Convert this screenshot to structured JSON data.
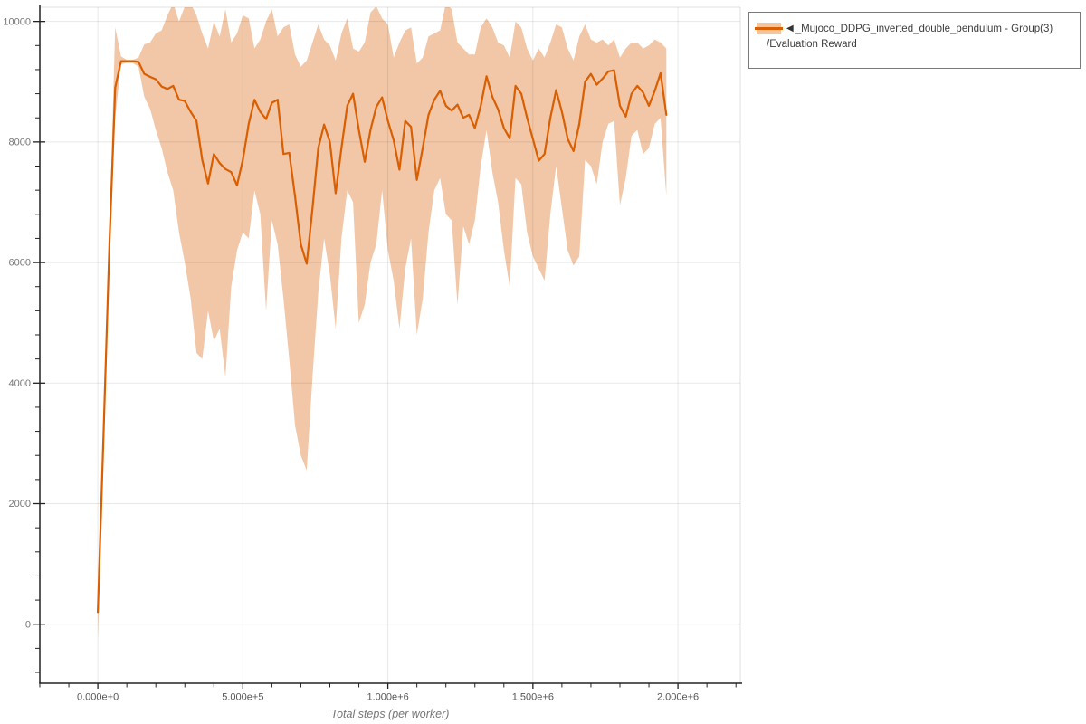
{
  "page": {
    "background_color": "#ffffff"
  },
  "legend": {
    "collapse_icon": "◀",
    "series_name": "_Mujoco_DDPG_inverted_double_pendulum - Group(3)",
    "metric_name": "/Evaluation Reward",
    "line_color": "#d95f02",
    "band_color": "#f2c59e",
    "border_color": "#7a7a7a"
  },
  "chart_data": {
    "type": "line",
    "title": "",
    "xlabel": "Total steps (per worker)",
    "ylabel": "",
    "legend_position": "top-right-outside",
    "grid": "major",
    "xlim": [
      -200000,
      2215000
    ],
    "ylim": [
      -980,
      10235
    ],
    "x_ticks": [
      {
        "value": 0,
        "label": "0.000e+0"
      },
      {
        "value": 500000,
        "label": "5.000e+5"
      },
      {
        "value": 1000000,
        "label": "1.000e+6"
      },
      {
        "value": 1500000,
        "label": "1.500e+6"
      },
      {
        "value": 2000000,
        "label": "2.000e+6"
      }
    ],
    "y_ticks": [
      {
        "value": 10000,
        "label": "10000"
      },
      {
        "value": 8000,
        "label": "8000"
      },
      {
        "value": 6000,
        "label": "6000"
      },
      {
        "value": 4000,
        "label": "4000"
      },
      {
        "value": 2000,
        "label": "2000"
      },
      {
        "value": 0,
        "label": "0"
      }
    ],
    "x_minor_tick_step": 100000,
    "y_minor_tick_step": 400,
    "colors": {
      "line": "#d95f02",
      "band_fill": "rgba(217,95,2,0.35)",
      "gridline": "rgba(0,0,0,0.09)",
      "plot_border": "rgba(0,0,0,0.12)",
      "axis_spine": "#222222",
      "x_tick_label": "#555555",
      "y_tick_label": "#777777",
      "axis_label": "#767676"
    },
    "series": [
      {
        "name": "_Mujoco_DDPG_inverted_double_pendulum - Group(3)/Evaluation Reward",
        "x_start": 0,
        "x_step": 20000,
        "mean": [
          200,
          3200,
          6300,
          8900,
          9340,
          9340,
          9340,
          9330,
          9130,
          9080,
          9040,
          8920,
          8880,
          8930,
          8700,
          8680,
          8500,
          8350,
          7700,
          7310,
          7800,
          7650,
          7550,
          7500,
          7280,
          7700,
          8300,
          8700,
          8500,
          8380,
          8650,
          8700,
          7800,
          7820,
          7100,
          6300,
          5980,
          6900,
          7900,
          8290,
          8000,
          7150,
          7900,
          8600,
          8800,
          8200,
          7670,
          8200,
          8580,
          8740,
          8350,
          8030,
          7540,
          8350,
          8250,
          7370,
          7900,
          8450,
          8700,
          8850,
          8600,
          8520,
          8620,
          8400,
          8450,
          8230,
          8600,
          9090,
          8750,
          8540,
          8230,
          8060,
          8930,
          8800,
          8400,
          8050,
          7690,
          7800,
          8400,
          8860,
          8500,
          8050,
          7850,
          8300,
          9000,
          9130,
          8950,
          9050,
          9170,
          9190,
          8600,
          8420,
          8800,
          8930,
          8820,
          8600,
          8850,
          9140,
          8450
        ],
        "band_upper": [
          500,
          3350,
          6500,
          9900,
          9420,
          9360,
          9360,
          9400,
          9620,
          9650,
          9800,
          9850,
          10100,
          10300,
          10000,
          10250,
          10300,
          10100,
          9800,
          9550,
          10000,
          9750,
          10200,
          9650,
          9800,
          10100,
          10050,
          9550,
          9700,
          10000,
          10200,
          9750,
          9900,
          9950,
          9450,
          9250,
          9350,
          9650,
          9950,
          9700,
          9600,
          9350,
          9800,
          10050,
          9550,
          9500,
          9650,
          10150,
          10250,
          10050,
          9950,
          9400,
          9650,
          9850,
          9900,
          9300,
          9400,
          9750,
          9800,
          9850,
          10300,
          10200,
          9650,
          9550,
          9450,
          9450,
          9900,
          10050,
          9900,
          9650,
          9600,
          9400,
          10000,
          9900,
          9550,
          9350,
          9550,
          9400,
          9650,
          9950,
          9900,
          9550,
          9350,
          9750,
          9950,
          9700,
          9650,
          9700,
          9600,
          9700,
          9400,
          9550,
          9650,
          9650,
          9550,
          9600,
          9700,
          9650,
          9550
        ],
        "band_lower": [
          -250,
          2900,
          6000,
          8400,
          9290,
          9310,
          9310,
          9250,
          8750,
          8550,
          8200,
          7900,
          7500,
          7200,
          6500,
          6000,
          5400,
          4500,
          4400,
          5200,
          4700,
          4900,
          4100,
          5600,
          6200,
          6500,
          6400,
          7200,
          6800,
          5200,
          6700,
          6300,
          5400,
          4400,
          3300,
          2800,
          2550,
          4100,
          5500,
          6400,
          5800,
          4900,
          6400,
          7200,
          7000,
          5000,
          5300,
          6000,
          6300,
          7200,
          6200,
          5700,
          4900,
          5900,
          6400,
          4800,
          5400,
          6500,
          7200,
          7400,
          6800,
          6700,
          5300,
          6600,
          6300,
          6700,
          7600,
          8200,
          7500,
          7000,
          6200,
          5600,
          7400,
          7300,
          6500,
          6100,
          5900,
          5700,
          6800,
          7600,
          6900,
          6200,
          5950,
          6100,
          7700,
          7600,
          7300,
          8000,
          8300,
          8350,
          6950,
          7400,
          8100,
          8200,
          7800,
          7900,
          8300,
          8400,
          7100
        ]
      }
    ]
  }
}
